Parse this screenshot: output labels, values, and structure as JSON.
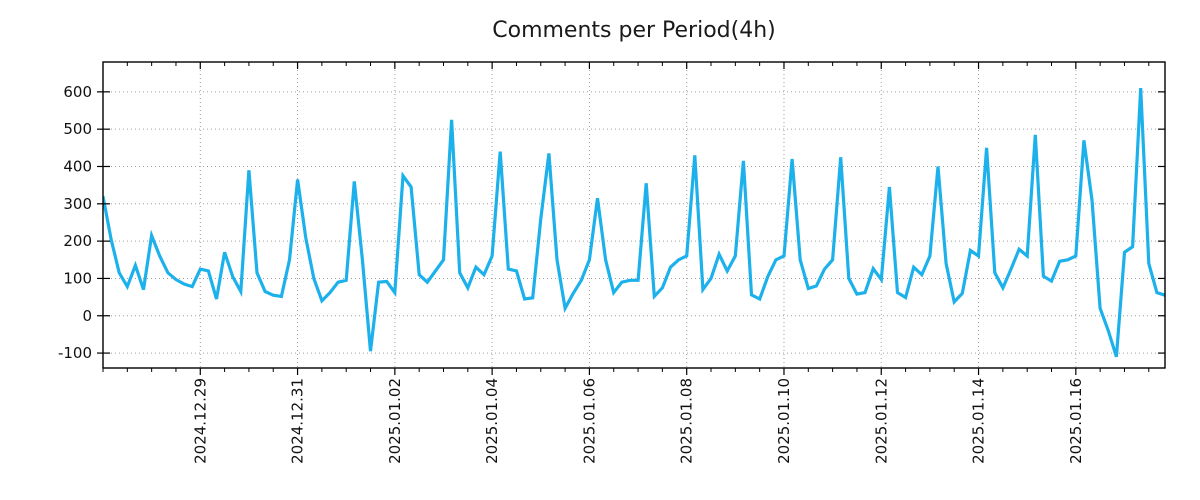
{
  "chart": {
    "title": "Comments per Period(4h)"
  },
  "chart_data": {
    "type": "line",
    "title": "Comments per Period(4h)",
    "series_name": "comments-per-4h-period",
    "period_hours": 4,
    "line_color": "#1db1ec",
    "grid": "dotted",
    "grid_color": "#9e9e9e",
    "axis_color": "#000000",
    "ylim": [
      -140,
      680
    ],
    "y_ticks": [
      -100,
      0,
      100,
      200,
      300,
      400,
      500,
      600
    ],
    "x_tick_labels": [
      "2024.12.29",
      "2024.12.31",
      "2025.01.02",
      "2025.01.04",
      "2025.01.06",
      "2025.01.08",
      "2025.01.10",
      "2025.01.12",
      "2025.01.14",
      "2025.01.16"
    ],
    "x_tick_indices": [
      12,
      24,
      36,
      48,
      60,
      72,
      84,
      96,
      108,
      120
    ],
    "minor_x_tick_every": 3,
    "values": [
      320,
      205,
      115,
      78,
      135,
      70,
      215,
      160,
      115,
      97,
      85,
      78,
      125,
      120,
      45,
      170,
      105,
      65,
      390,
      115,
      65,
      55,
      52,
      150,
      365,
      210,
      100,
      40,
      62,
      90,
      95,
      360,
      150,
      -95,
      90,
      92,
      62,
      375,
      345,
      110,
      90,
      120,
      150,
      525,
      115,
      75,
      130,
      110,
      160,
      440,
      125,
      120,
      45,
      48,
      260,
      435,
      150,
      20,
      60,
      95,
      150,
      315,
      150,
      62,
      90,
      95,
      95,
      355,
      52,
      75,
      130,
      150,
      160,
      430,
      70,
      100,
      165,
      120,
      160,
      415,
      56,
      45,
      105,
      150,
      160,
      420,
      150,
      73,
      80,
      125,
      150,
      425,
      100,
      58,
      62,
      126,
      97,
      345,
      62,
      49,
      130,
      110,
      160,
      400,
      140,
      37,
      60,
      175,
      160,
      450,
      115,
      75,
      125,
      178,
      160,
      485,
      106,
      93,
      146,
      150,
      160,
      470,
      310,
      20,
      -40,
      -110,
      170,
      185,
      610,
      140,
      62,
      55
    ]
  }
}
